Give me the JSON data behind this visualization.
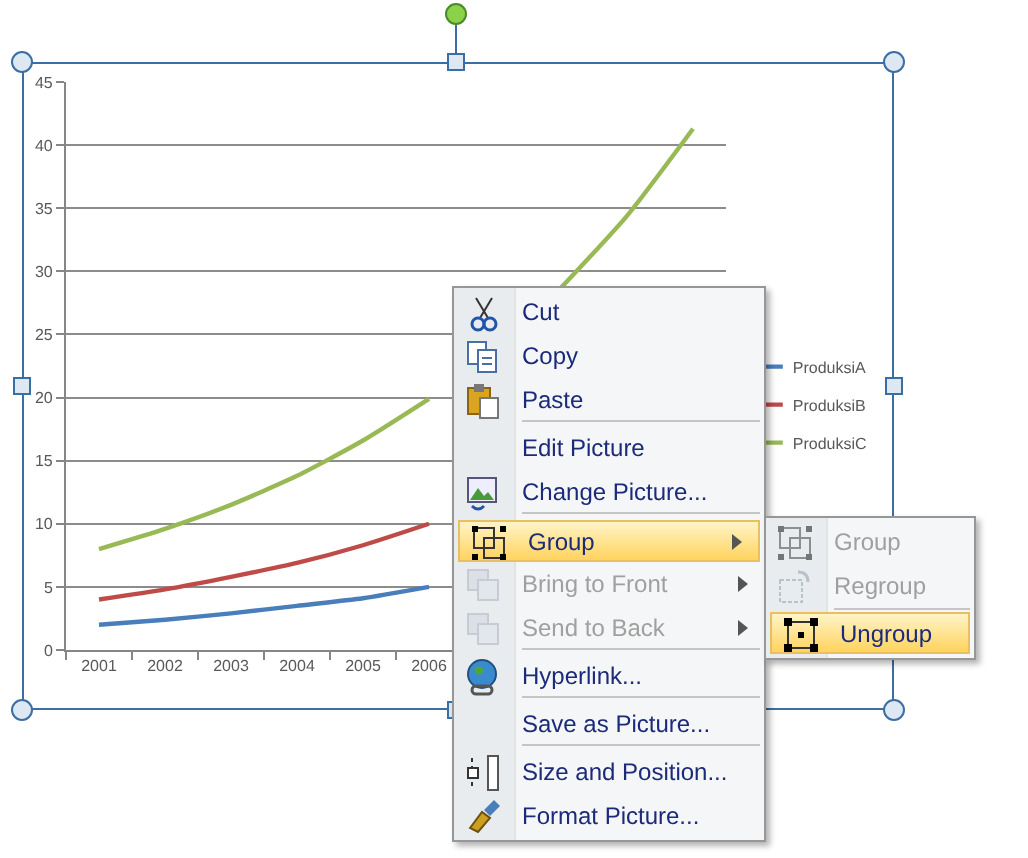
{
  "chart_data": {
    "type": "line",
    "categories": [
      "2001",
      "2002",
      "2003",
      "2004",
      "2005",
      "2006",
      null,
      null,
      null,
      null
    ],
    "series": [
      {
        "name": "ProduksiA",
        "color": "#4a7ebb",
        "values": [
          2,
          2.4,
          2.9,
          3.5,
          4.1,
          5.0,
          null,
          null,
          null,
          null
        ]
      },
      {
        "name": "ProduksiB",
        "color": "#be4b48",
        "values": [
          4,
          4.8,
          5.8,
          6.9,
          8.3,
          10.0,
          null,
          null,
          null,
          null
        ]
      },
      {
        "name": "ProduksiC",
        "color": "#98b954",
        "values": [
          8,
          9.6,
          11.5,
          13.8,
          16.6,
          19.9,
          null,
          28.7,
          34.4,
          41.3
        ]
      }
    ],
    "ylim": [
      0,
      45
    ],
    "yticks": [
      0,
      5,
      10,
      15,
      20,
      25,
      30,
      35,
      40,
      45
    ],
    "grid": "y",
    "legend": "right",
    "marker": "none",
    "line_style": "solid",
    "annotations": [
      "Cut",
      "Copy",
      "Paste",
      "Edit Picture",
      "Change Picture...",
      "Group",
      "Bring to Front",
      "Send to Back",
      "Hyperlink...",
      "Save as Picture...",
      "Size and Position...",
      "Format Picture...",
      "Group",
      "Regroup",
      "Ungroup"
    ]
  }
}
